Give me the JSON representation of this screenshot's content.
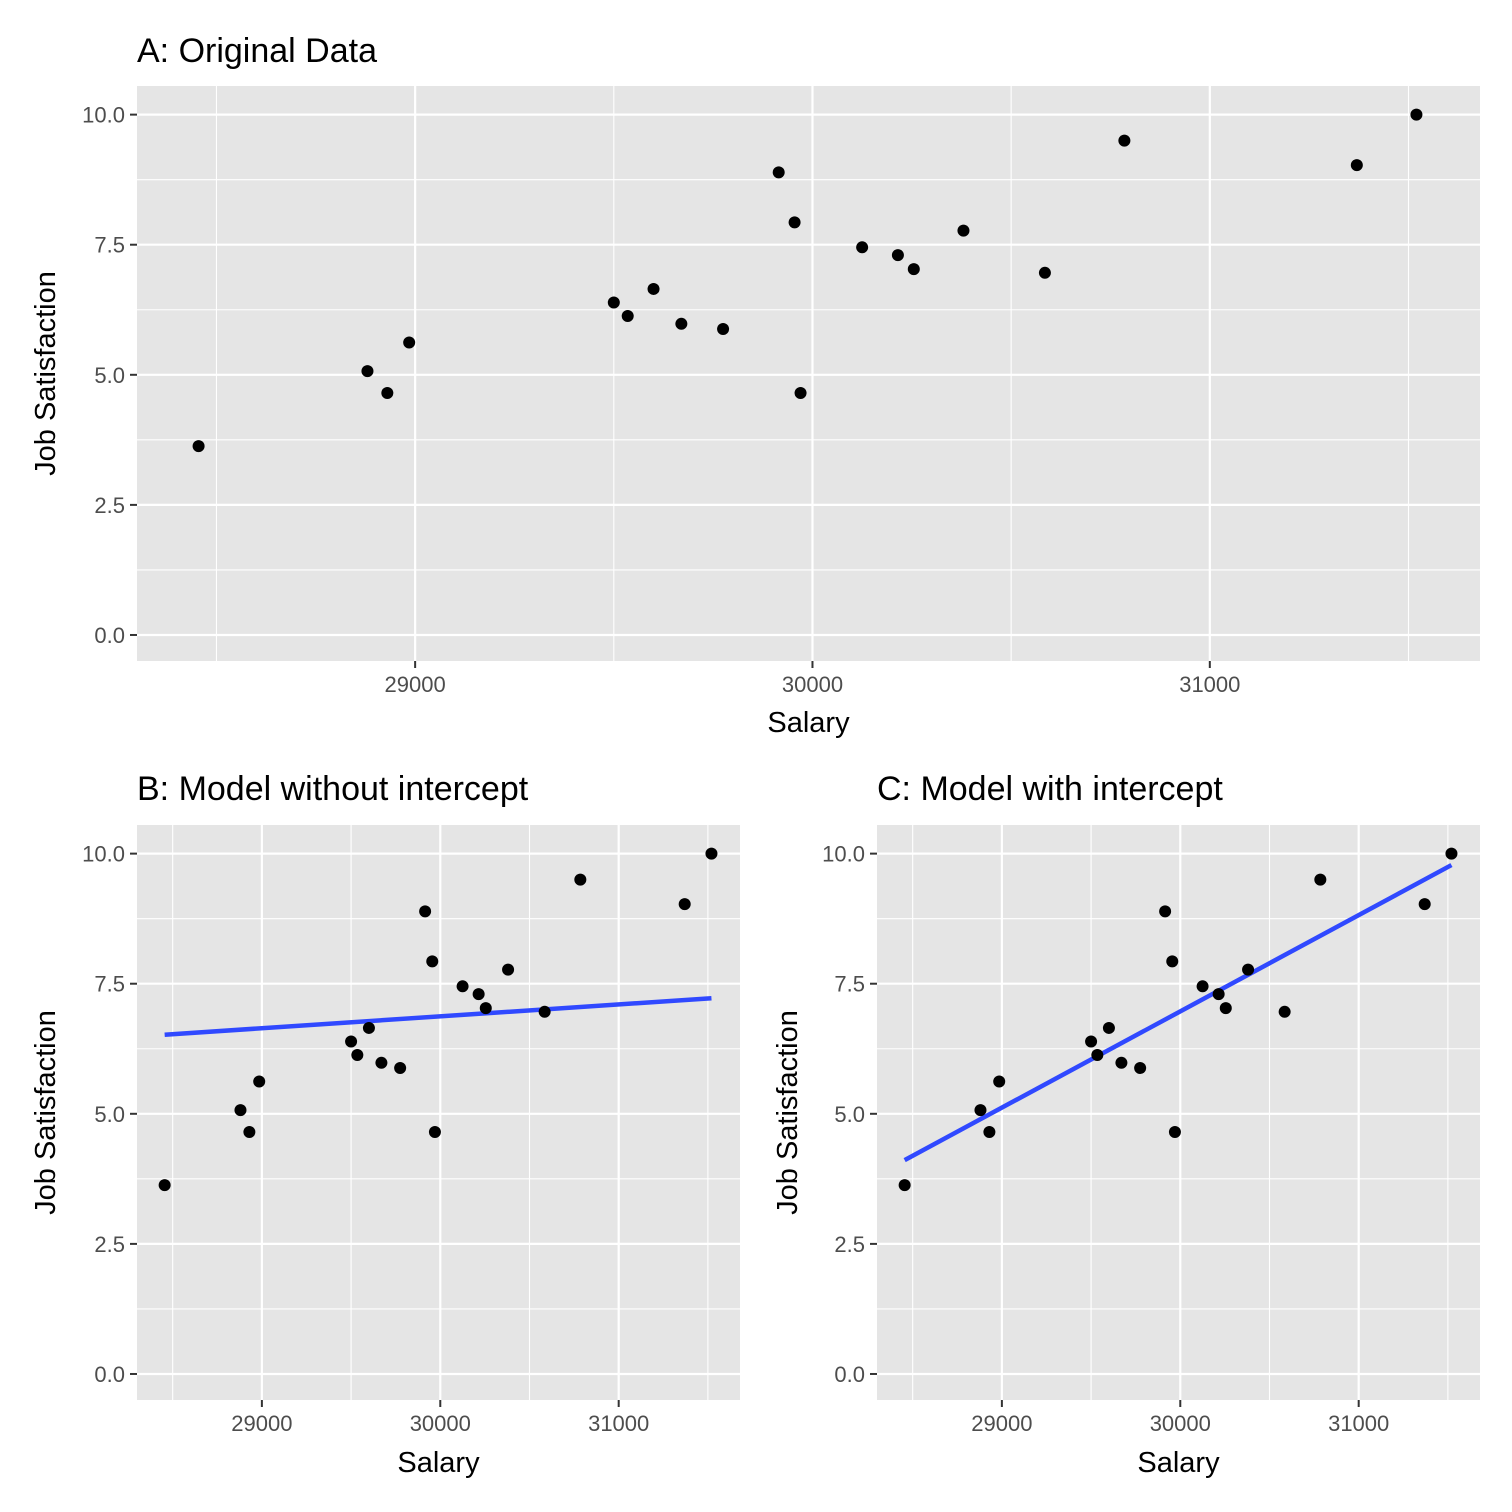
{
  "chart_data": [
    {
      "type": "scatter",
      "title": "A: Original Data",
      "xlabel": "Salary",
      "ylabel": "Job Satisfaction",
      "xlim": [
        28300,
        31680
      ],
      "ylim": [
        -0.5,
        10.55
      ],
      "xticks": [
        29000,
        30000,
        31000
      ],
      "xtick_labels": [
        "29000",
        "30000",
        "31000"
      ],
      "yticks": [
        0,
        2.5,
        5,
        7.5,
        10
      ],
      "ytick_labels": [
        "0.0",
        "2.5",
        "5.0",
        "7.5",
        "10.0"
      ],
      "grid": true,
      "points": {
        "x": [
          28455,
          28880,
          28930,
          28985,
          29500,
          29535,
          29600,
          29670,
          29775,
          29915,
          29955,
          29970,
          30125,
          30215,
          30255,
          30380,
          30585,
          30785,
          31370,
          31520
        ],
        "y": [
          3.63,
          5.07,
          4.65,
          5.62,
          6.39,
          6.13,
          6.65,
          5.98,
          5.88,
          8.89,
          7.93,
          4.65,
          7.45,
          7.3,
          7.03,
          7.77,
          6.96,
          9.5,
          9.03,
          10.0
        ]
      }
    },
    {
      "type": "scatter",
      "title": "B: Model without intercept",
      "xlabel": "Salary",
      "ylabel": "Job Satisfaction",
      "xlim": [
        28300,
        31680
      ],
      "ylim": [
        -0.5,
        10.55
      ],
      "xticks": [
        29000,
        30000,
        31000
      ],
      "xtick_labels": [
        "29000",
        "30000",
        "31000"
      ],
      "yticks": [
        0,
        2.5,
        5,
        7.5,
        10
      ],
      "ytick_labels": [
        "0.0",
        "2.5",
        "5.0",
        "7.5",
        "10.0"
      ],
      "grid": true,
      "points": {
        "x": [
          28455,
          28880,
          28930,
          28985,
          29500,
          29535,
          29600,
          29670,
          29775,
          29915,
          29955,
          29970,
          30125,
          30215,
          30255,
          30380,
          30585,
          30785,
          31370,
          31520
        ],
        "y": [
          3.63,
          5.07,
          4.65,
          5.62,
          6.39,
          6.13,
          6.65,
          5.98,
          5.88,
          8.89,
          7.93,
          4.65,
          7.45,
          7.3,
          7.03,
          7.77,
          6.96,
          9.5,
          9.03,
          10.0
        ]
      },
      "fit_line": {
        "x": [
          28455,
          31520
        ],
        "y": [
          6.52,
          7.22
        ]
      }
    },
    {
      "type": "scatter",
      "title": "C: Model with intercept",
      "xlabel": "Salary",
      "ylabel": "Job Satisfaction",
      "xlim": [
        28300,
        31680
      ],
      "ylim": [
        -0.5,
        10.55
      ],
      "xticks": [
        29000,
        30000,
        31000
      ],
      "xtick_labels": [
        "29000",
        "30000",
        "31000"
      ],
      "yticks": [
        0,
        2.5,
        5,
        7.5,
        10
      ],
      "ytick_labels": [
        "0.0",
        "2.5",
        "5.0",
        "7.5",
        "10.0"
      ],
      "grid": true,
      "points": {
        "x": [
          28455,
          28880,
          28930,
          28985,
          29500,
          29535,
          29600,
          29670,
          29775,
          29915,
          29955,
          29970,
          30125,
          30215,
          30255,
          30380,
          30585,
          30785,
          31370,
          31520
        ],
        "y": [
          3.63,
          5.07,
          4.65,
          5.62,
          6.39,
          6.13,
          6.65,
          5.98,
          5.88,
          8.89,
          7.93,
          4.65,
          7.45,
          7.3,
          7.03,
          7.77,
          6.96,
          9.5,
          9.03,
          10.0
        ]
      },
      "fit_line": {
        "x": [
          28455,
          31520
        ],
        "y": [
          4.11,
          9.78
        ]
      }
    }
  ]
}
